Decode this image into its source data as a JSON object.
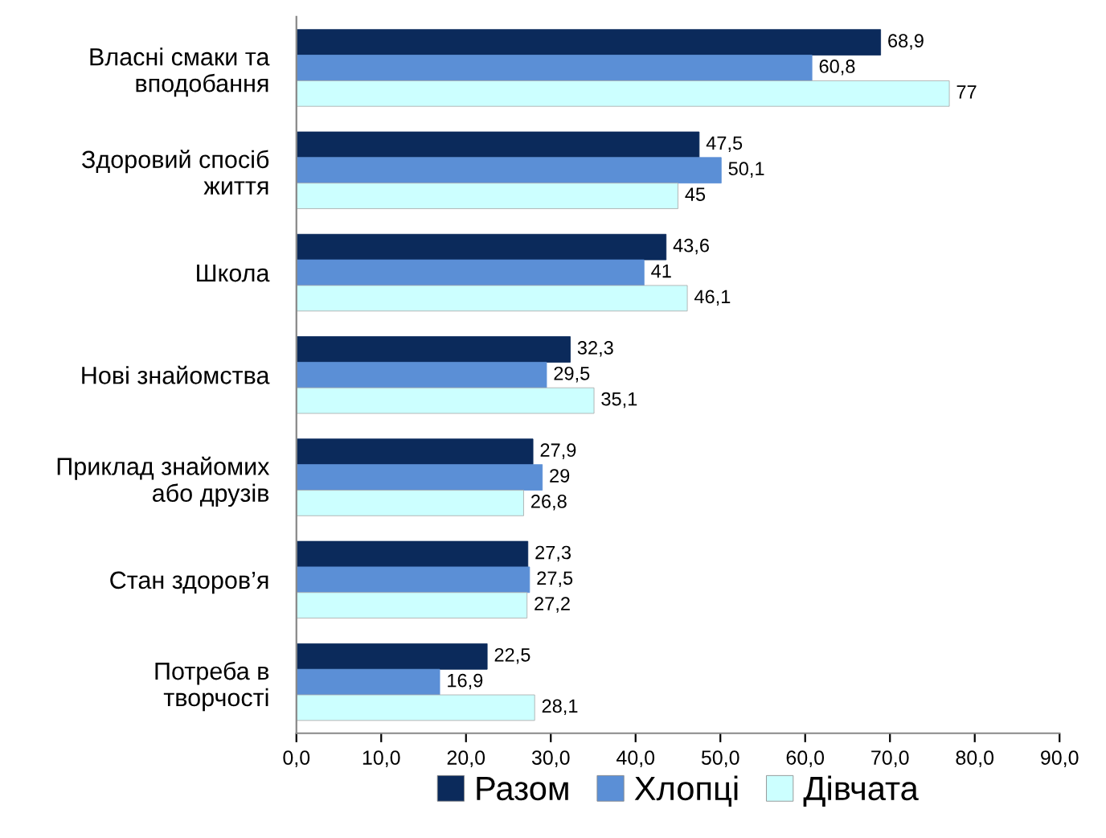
{
  "chart_data": {
    "type": "bar",
    "orientation": "horizontal",
    "categories": [
      "Власні смаки та\nвподобання",
      "Здоровий спосіб\nжиття",
      "Школа",
      "Нові знайомства",
      "Приклад знайомих\nабо друзів",
      "Стан здоров’я",
      "Потреба в\nтворчості"
    ],
    "series": [
      {
        "name": "Разом",
        "color": "#0b2a5b",
        "values": [
          68.9,
          47.5,
          43.6,
          32.3,
          27.9,
          27.3,
          22.5
        ],
        "value_labels": [
          "68,9",
          "47,5",
          "43,6",
          "32,3",
          "27,9",
          "27,3",
          "22,5"
        ]
      },
      {
        "name": "Хлопці",
        "color": "#5b8fd6",
        "values": [
          60.8,
          50.1,
          41,
          29.5,
          29,
          27.5,
          16.9
        ],
        "value_labels": [
          "60,8",
          "50,1",
          "41",
          "29,5",
          "29",
          "27,5",
          "16,9"
        ]
      },
      {
        "name": "Дівчата",
        "color": "#ccffff",
        "values": [
          77,
          45,
          46.1,
          35.1,
          26.8,
          27.2,
          28.1
        ],
        "value_labels": [
          "77",
          "45",
          "46,1",
          "35,1",
          "26,8",
          "27,2",
          "28,1"
        ]
      }
    ],
    "xlim": [
      0,
      90
    ],
    "xticks": [
      {
        "value": 0,
        "label": "0,0"
      },
      {
        "value": 10,
        "label": "10,0"
      },
      {
        "value": 20,
        "label": "20,0"
      },
      {
        "value": 30,
        "label": "30,0"
      },
      {
        "value": 40,
        "label": "40,0"
      },
      {
        "value": 50,
        "label": "50,0"
      },
      {
        "value": 60,
        "label": "60,0"
      },
      {
        "value": 70,
        "label": "70,0"
      },
      {
        "value": 80,
        "label": "80,0"
      },
      {
        "value": 90,
        "label": "90,0"
      }
    ],
    "legend": "bottom",
    "grid": false
  }
}
